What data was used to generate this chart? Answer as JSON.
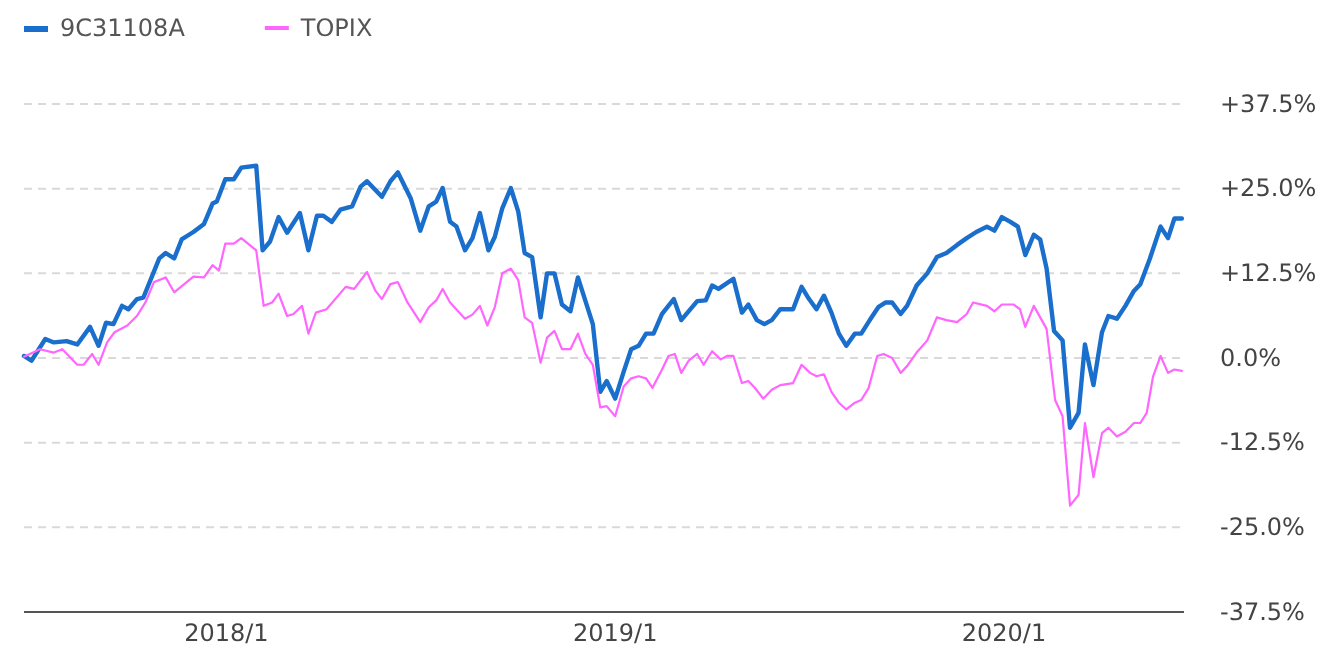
{
  "chart_data": {
    "type": "line",
    "legend": "top left",
    "grid": "y",
    "line_style": "solid",
    "xlim": [
      "2017-06-25",
      "2020-06-18"
    ],
    "xticks": [
      {
        "value": "2018-01-01",
        "label": "2018/1"
      },
      {
        "value": "2019-01-01",
        "label": "2019/1"
      },
      {
        "value": "2020-01-01",
        "label": "2020/1"
      }
    ],
    "ylim": [
      -37.5,
      37.5
    ],
    "yticks": [
      {
        "value": -37.5,
        "label": "-37.5%"
      },
      {
        "value": -25,
        "label": "-25.0%"
      },
      {
        "value": -12.5,
        "label": "-12.5%"
      },
      {
        "value": 0,
        "label": "0.0%"
      },
      {
        "value": 12.5,
        "label": "+12.5%"
      },
      {
        "value": 25,
        "label": "+25.0%"
      },
      {
        "value": 37.5,
        "label": "+37.5%"
      }
    ],
    "series": [
      {
        "name": "9C31108A",
        "color": "#1a6ecc",
        "x": [
          "2017-06-25",
          "2017-07-02",
          "2017-07-15",
          "2017-07-23",
          "2017-08-04",
          "2017-08-14",
          "2017-08-26",
          "2017-09-03",
          "2017-09-10",
          "2017-09-17",
          "2017-09-25",
          "2017-10-01",
          "2017-10-09",
          "2017-10-15",
          "2017-10-30",
          "2017-11-05",
          "2017-11-13",
          "2017-11-20",
          "2017-12-01",
          "2017-12-11",
          "2017-12-19",
          "2017-12-23",
          "2017-12-31",
          "2018-01-08",
          "2018-01-15",
          "2018-01-29",
          "2018-02-04",
          "2018-02-11",
          "2018-02-19",
          "2018-02-27",
          "2018-03-11",
          "2018-03-19",
          "2018-03-27",
          "2018-04-02",
          "2018-04-10",
          "2018-04-18",
          "2018-04-29",
          "2018-05-07",
          "2018-05-13",
          "2018-05-27",
          "2018-06-04",
          "2018-06-11",
          "2018-06-23",
          "2018-07-02",
          "2018-07-10",
          "2018-07-17",
          "2018-07-23",
          "2018-07-30",
          "2018-08-05",
          "2018-08-13",
          "2018-08-20",
          "2018-08-27",
          "2018-09-04",
          "2018-09-10",
          "2018-09-17",
          "2018-09-25",
          "2018-10-02",
          "2018-10-08",
          "2018-10-15",
          "2018-10-23",
          "2018-10-29",
          "2018-11-05",
          "2018-11-12",
          "2018-11-20",
          "2018-11-27",
          "2018-12-11",
          "2018-12-18",
          "2018-12-24",
          "2019-01-01",
          "2019-01-09",
          "2019-01-16",
          "2019-01-23",
          "2019-01-30",
          "2019-02-06",
          "2019-02-14",
          "2019-02-25",
          "2019-03-04",
          "2019-03-19",
          "2019-03-27",
          "2019-04-02",
          "2019-04-08",
          "2019-04-22",
          "2019-04-30",
          "2019-05-06",
          "2019-05-14",
          "2019-05-21",
          "2019-05-28",
          "2019-06-05",
          "2019-06-17",
          "2019-06-25",
          "2019-07-02",
          "2019-07-09",
          "2019-07-16",
          "2019-07-23",
          "2019-07-30",
          "2019-08-06",
          "2019-08-14",
          "2019-08-20",
          "2019-08-28",
          "2019-09-05",
          "2019-09-12",
          "2019-09-18",
          "2019-09-26",
          "2019-10-02",
          "2019-10-11",
          "2019-10-21",
          "2019-10-30",
          "2019-11-08",
          "2019-11-18",
          "2019-11-27",
          "2019-12-06",
          "2019-12-16",
          "2019-12-23",
          "2019-12-30",
          "2020-01-07",
          "2020-01-14",
          "2020-01-21",
          "2020-01-29",
          "2020-02-04",
          "2020-02-10",
          "2020-02-17",
          "2020-02-25",
          "2020-03-03",
          "2020-03-11",
          "2020-03-17",
          "2020-03-25",
          "2020-04-02",
          "2020-04-08",
          "2020-04-16",
          "2020-04-24",
          "2020-05-02",
          "2020-05-08",
          "2020-05-17",
          "2020-05-27",
          "2020-06-03",
          "2020-06-09",
          "2020-06-16"
        ],
        "values": [
          0.3,
          -0.4,
          2.8,
          2.3,
          2.5,
          2.0,
          4.6,
          1.8,
          5.2,
          5.0,
          7.7,
          7.2,
          8.7,
          8.9,
          14.7,
          15.5,
          14.7,
          17.5,
          18.6,
          19.8,
          22.8,
          23.1,
          26.4,
          26.4,
          28.1,
          28.4,
          15.9,
          17.2,
          20.8,
          18.5,
          21.4,
          15.9,
          21.0,
          21.0,
          20.1,
          21.9,
          22.4,
          25.3,
          26.1,
          23.8,
          26.1,
          27.4,
          23.6,
          18.8,
          22.4,
          23.1,
          25.1,
          20.1,
          19.4,
          15.9,
          17.7,
          21.4,
          15.9,
          17.9,
          22.1,
          25.1,
          21.6,
          15.5,
          14.9,
          6.0,
          12.5,
          12.5,
          7.9,
          6.9,
          11.9,
          5.0,
          -5.0,
          -3.4,
          -6.0,
          -2.0,
          1.3,
          1.8,
          3.6,
          3.6,
          6.5,
          8.7,
          5.6,
          8.4,
          8.5,
          10.7,
          10.2,
          11.7,
          6.7,
          7.9,
          5.6,
          5.0,
          5.6,
          7.2,
          7.2,
          10.5,
          8.7,
          7.2,
          9.2,
          6.7,
          3.6,
          1.8,
          3.6,
          3.6,
          5.6,
          7.5,
          8.2,
          8.2,
          6.5,
          7.7,
          10.7,
          12.5,
          14.9,
          15.5,
          16.7,
          17.7,
          18.6,
          19.4,
          18.8,
          20.8,
          20.1,
          19.4,
          15.2,
          18.2,
          17.5,
          13.2,
          4.0,
          2.6,
          -10.3,
          -8.1,
          2.0,
          -4.0,
          3.8,
          6.2,
          5.8,
          7.7,
          9.9,
          10.9,
          14.7,
          19.4,
          17.7,
          20.6,
          20.6
        ]
      },
      {
        "name": "TOPIX",
        "color": "#ff66ff",
        "x": [
          "2017-06-25",
          "2017-07-10",
          "2017-07-23",
          "2017-07-31",
          "2017-08-14",
          "2017-08-20",
          "2017-08-28",
          "2017-09-03",
          "2017-09-11",
          "2017-09-18",
          "2017-09-30",
          "2017-10-09",
          "2017-10-17",
          "2017-10-25",
          "2017-11-05",
          "2017-11-13",
          "2017-12-01",
          "2017-12-11",
          "2017-12-19",
          "2017-12-25",
          "2017-12-31",
          "2018-01-08",
          "2018-01-15",
          "2018-01-29",
          "2018-02-05",
          "2018-02-13",
          "2018-02-19",
          "2018-02-27",
          "2018-03-05",
          "2018-03-13",
          "2018-03-19",
          "2018-03-26",
          "2018-04-05",
          "2018-04-23",
          "2018-05-01",
          "2018-05-13",
          "2018-05-21",
          "2018-05-27",
          "2018-06-04",
          "2018-06-11",
          "2018-06-20",
          "2018-07-02",
          "2018-07-10",
          "2018-07-17",
          "2018-07-23",
          "2018-07-30",
          "2018-08-13",
          "2018-08-20",
          "2018-08-27",
          "2018-09-03",
          "2018-09-10",
          "2018-09-17",
          "2018-09-25",
          "2018-10-02",
          "2018-10-08",
          "2018-10-15",
          "2018-10-23",
          "2018-10-29",
          "2018-11-05",
          "2018-11-12",
          "2018-11-20",
          "2018-11-27",
          "2018-12-04",
          "2018-12-11",
          "2018-12-18",
          "2018-12-24",
          "2019-01-01",
          "2019-01-09",
          "2019-01-16",
          "2019-01-23",
          "2019-01-30",
          "2019-02-05",
          "2019-02-14",
          "2019-02-20",
          "2019-02-26",
          "2019-03-04",
          "2019-03-11",
          "2019-03-19",
          "2019-03-25",
          "2019-04-02",
          "2019-04-10",
          "2019-04-16",
          "2019-04-22",
          "2019-04-30",
          "2019-05-06",
          "2019-05-12",
          "2019-05-20",
          "2019-05-28",
          "2019-06-05",
          "2019-06-17",
          "2019-06-25",
          "2019-07-03",
          "2019-07-09",
          "2019-07-16",
          "2019-07-23",
          "2019-07-30",
          "2019-08-06",
          "2019-08-14",
          "2019-08-20",
          "2019-08-27",
          "2019-09-04",
          "2019-09-10",
          "2019-09-18",
          "2019-09-26",
          "2019-10-02",
          "2019-10-11",
          "2019-10-21",
          "2019-10-30",
          "2019-11-08",
          "2019-11-18",
          "2019-11-27",
          "2019-12-03",
          "2019-12-16",
          "2019-12-23",
          "2019-12-30",
          "2020-01-10",
          "2020-01-16",
          "2020-01-21",
          "2020-01-29",
          "2020-02-10",
          "2020-02-18",
          "2020-02-25",
          "2020-03-03",
          "2020-03-11",
          "2020-03-17",
          "2020-03-25",
          "2020-04-02",
          "2020-04-08",
          "2020-04-16",
          "2020-04-24",
          "2020-05-02",
          "2020-05-08",
          "2020-05-14",
          "2020-05-20",
          "2020-05-27",
          "2020-06-03",
          "2020-06-09",
          "2020-06-16"
        ],
        "values": [
          0.2,
          1.3,
          0.8,
          1.3,
          -1.0,
          -1.0,
          0.6,
          -1.0,
          2.3,
          3.8,
          4.8,
          6.2,
          8.2,
          11.2,
          11.9,
          9.7,
          12.0,
          11.9,
          13.7,
          12.9,
          16.9,
          16.9,
          17.7,
          15.9,
          7.7,
          8.2,
          9.5,
          6.2,
          6.5,
          7.7,
          3.6,
          6.7,
          7.2,
          10.5,
          10.2,
          12.7,
          9.9,
          8.7,
          10.9,
          11.2,
          8.2,
          5.3,
          7.5,
          8.5,
          10.2,
          8.2,
          5.8,
          6.4,
          7.7,
          4.8,
          7.5,
          12.5,
          13.2,
          11.5,
          6.0,
          5.2,
          -0.7,
          3.0,
          4.0,
          1.3,
          1.3,
          3.6,
          0.6,
          -1.0,
          -7.3,
          -7.1,
          -8.6,
          -4.2,
          -3.0,
          -2.7,
          -3.0,
          -4.4,
          -1.7,
          0.3,
          0.6,
          -2.2,
          -0.4,
          0.6,
          -1.0,
          1.0,
          -0.2,
          0.3,
          0.3,
          -3.7,
          -3.4,
          -4.4,
          -6.0,
          -4.7,
          -4.0,
          -3.7,
          -1.0,
          -2.2,
          -2.7,
          -2.4,
          -5.0,
          -6.6,
          -7.6,
          -6.6,
          -6.2,
          -4.4,
          0.3,
          0.6,
          0.0,
          -2.2,
          -1.2,
          0.8,
          2.6,
          6.0,
          5.6,
          5.3,
          6.5,
          8.2,
          7.7,
          6.9,
          7.9,
          7.9,
          7.2,
          4.6,
          7.7,
          4.3,
          -6.2,
          -8.6,
          -21.8,
          -20.2,
          -9.6,
          -17.6,
          -11.1,
          -10.3,
          -11.6,
          -10.9,
          -9.6,
          -9.6,
          -8.1,
          -2.7,
          0.3,
          -2.2,
          -1.7,
          -1.9
        ]
      }
    ]
  }
}
